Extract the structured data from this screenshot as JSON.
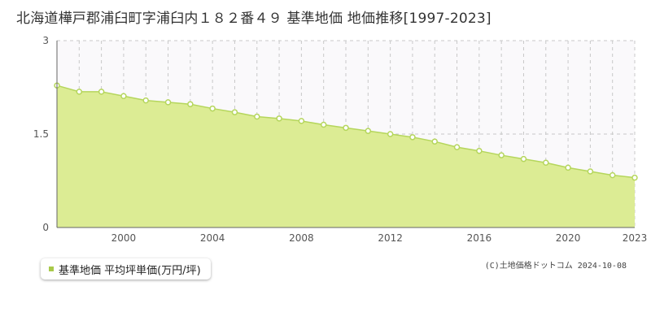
{
  "title": "北海道樺戸郡浦臼町字浦臼内１８２番４９ 基準地価 地価推移[1997-2023]",
  "legend": {
    "label": "基準地価 平均坪単価(万円/坪)"
  },
  "copyright": "(C)土地価格ドットコム 2024-10-08",
  "colors": {
    "area_fill": "#dcec94",
    "line": "#b5d65c",
    "marker_fill": "#ffffff",
    "grid": "#c8c8c8",
    "upper_bg": "#faf9fb"
  },
  "chart_data": {
    "type": "area",
    "title": "北海道樺戸郡浦臼町字浦臼内１８２番４９ 基準地価 地価推移[1997-2023]",
    "xlabel": "",
    "ylabel": "",
    "x": [
      1997,
      1998,
      1999,
      2000,
      2001,
      2002,
      2003,
      2004,
      2005,
      2006,
      2007,
      2008,
      2009,
      2010,
      2011,
      2012,
      2013,
      2014,
      2015,
      2016,
      2017,
      2018,
      2019,
      2020,
      2021,
      2022,
      2023
    ],
    "series": [
      {
        "name": "基準地価 平均坪単価(万円/坪)",
        "values": [
          2.28,
          2.18,
          2.18,
          2.11,
          2.04,
          2.01,
          1.98,
          1.91,
          1.85,
          1.78,
          1.75,
          1.71,
          1.65,
          1.6,
          1.55,
          1.5,
          1.45,
          1.38,
          1.29,
          1.23,
          1.16,
          1.1,
          1.04,
          0.96,
          0.9,
          0.84,
          0.8
        ]
      }
    ],
    "ylim": [
      0,
      3
    ],
    "xlim": [
      1997,
      2023
    ],
    "y_ticks": [
      0,
      1.5,
      3
    ],
    "y_tick_labels": [
      "0",
      "1.5",
      "3"
    ],
    "x_tick_labels": [
      "2000",
      "2004",
      "2008",
      "2012",
      "2016",
      "2020",
      "2023"
    ],
    "x_ticks": [
      2000,
      2004,
      2008,
      2012,
      2016,
      2020,
      2023
    ],
    "grid": true,
    "legend_position": "bottom-left"
  }
}
